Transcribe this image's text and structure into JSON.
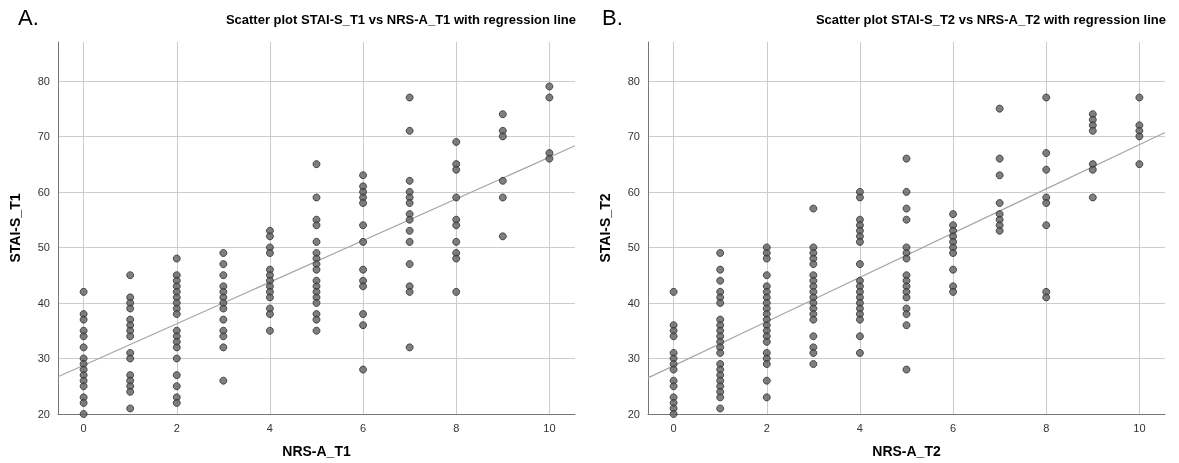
{
  "chart_data": [
    {
      "type": "scatter",
      "title": "Scatter plot STAI-S_T1 vs NRS-A_T1 with regression line",
      "xlabel": "NRS-A_T1",
      "ylabel": "STAI-S_T1",
      "annotations": [
        "A."
      ],
      "xlim": [
        -0.55,
        10.55
      ],
      "ylim": [
        20,
        87
      ],
      "xticks": [
        0,
        2,
        4,
        6,
        8,
        10
      ],
      "yticks": [
        20,
        30,
        40,
        50,
        60,
        70,
        80
      ],
      "grid": true,
      "series": [
        {
          "marker": "circle",
          "color": "#5f5f5f",
          "x": [
            0,
            0,
            0,
            0,
            0,
            0,
            0,
            0,
            0,
            0,
            0,
            0,
            0,
            0,
            0,
            1,
            1,
            1,
            1,
            1,
            1,
            1,
            1,
            1,
            1,
            1,
            1,
            1,
            1,
            1,
            2,
            2,
            2,
            2,
            2,
            2,
            2,
            2,
            2,
            2,
            2,
            2,
            2,
            2,
            2,
            2,
            2,
            2,
            3,
            3,
            3,
            3,
            3,
            3,
            3,
            3,
            3,
            3,
            3,
            3,
            3,
            4,
            4,
            4,
            4,
            4,
            4,
            4,
            4,
            4,
            4,
            4,
            4,
            4,
            5,
            5,
            5,
            5,
            5,
            5,
            5,
            5,
            5,
            5,
            5,
            5,
            5,
            5,
            5,
            5,
            5,
            6,
            6,
            6,
            6,
            6,
            6,
            6,
            6,
            6,
            6,
            6,
            6,
            6,
            7,
            7,
            7,
            7,
            7,
            7,
            7,
            7,
            7,
            7,
            7,
            7,
            7,
            7,
            8,
            8,
            8,
            8,
            8,
            8,
            8,
            8,
            8,
            8,
            9,
            9,
            9,
            9,
            9,
            9,
            10,
            10,
            10,
            10
          ],
          "values": [
            42,
            38,
            37,
            35,
            34,
            32,
            30,
            29,
            28,
            27,
            26,
            25,
            23,
            22,
            20,
            45,
            41,
            40,
            39,
            37,
            36,
            35,
            34,
            31,
            30,
            27,
            26,
            25,
            24,
            21,
            48,
            45,
            44,
            43,
            42,
            41,
            40,
            39,
            38,
            35,
            34,
            33,
            32,
            30,
            27,
            25,
            23,
            22,
            49,
            47,
            45,
            43,
            42,
            41,
            40,
            39,
            37,
            35,
            34,
            32,
            26,
            53,
            52,
            50,
            49,
            46,
            45,
            44,
            43,
            42,
            41,
            39,
            38,
            35,
            65,
            59,
            55,
            54,
            51,
            49,
            48,
            47,
            46,
            44,
            43,
            42,
            41,
            40,
            38,
            37,
            35,
            63,
            61,
            60,
            59,
            58,
            54,
            51,
            46,
            44,
            43,
            38,
            36,
            28,
            77,
            71,
            62,
            60,
            59,
            58,
            56,
            55,
            53,
            51,
            47,
            43,
            42,
            32,
            69,
            65,
            64,
            59,
            55,
            54,
            51,
            49,
            48,
            42,
            74,
            71,
            70,
            62,
            59,
            52,
            79,
            77,
            67,
            66
          ]
        },
        {
          "type": "line",
          "marker": "none",
          "color": "#a6a6a6",
          "line_style": "solid",
          "x": [
            -0.55,
            10.55
          ],
          "values": [
            26.7,
            68.3
          ]
        }
      ]
    },
    {
      "type": "scatter",
      "title": "Scatter plot STAI-S_T2 vs NRS-A_T2 with regression line",
      "xlabel": "NRS-A_T2",
      "ylabel": "STAI-S_T2",
      "annotations": [
        "B."
      ],
      "xlim": [
        -0.55,
        10.55
      ],
      "ylim": [
        20,
        87
      ],
      "xticks": [
        0,
        2,
        4,
        6,
        8,
        10
      ],
      "yticks": [
        20,
        30,
        40,
        50,
        60,
        70,
        80
      ],
      "grid": true,
      "series": [
        {
          "marker": "circle",
          "color": "#5f5f5f",
          "x": [
            0,
            0,
            0,
            0,
            0,
            0,
            0,
            0,
            0,
            0,
            0,
            0,
            0,
            0,
            1,
            1,
            1,
            1,
            1,
            1,
            1,
            1,
            1,
            1,
            1,
            1,
            1,
            1,
            1,
            1,
            1,
            1,
            1,
            1,
            1,
            2,
            2,
            2,
            2,
            2,
            2,
            2,
            2,
            2,
            2,
            2,
            2,
            2,
            2,
            2,
            2,
            2,
            2,
            2,
            2,
            3,
            3,
            3,
            3,
            3,
            3,
            3,
            3,
            3,
            3,
            3,
            3,
            3,
            3,
            3,
            3,
            3,
            3,
            4,
            4,
            4,
            4,
            4,
            4,
            4,
            4,
            4,
            4,
            4,
            4,
            4,
            4,
            4,
            4,
            4,
            4,
            5,
            5,
            5,
            5,
            5,
            5,
            5,
            5,
            5,
            5,
            5,
            5,
            5,
            5,
            5,
            5,
            6,
            6,
            6,
            6,
            6,
            6,
            6,
            6,
            6,
            6,
            7,
            7,
            7,
            7,
            7,
            7,
            7,
            7,
            8,
            8,
            8,
            8,
            8,
            8,
            8,
            8,
            9,
            9,
            9,
            9,
            9,
            9,
            9,
            10,
            10,
            10,
            10,
            10
          ],
          "values": [
            42,
            36,
            35,
            34,
            31,
            30,
            29,
            28,
            26,
            25,
            23,
            22,
            21,
            20,
            49,
            46,
            44,
            42,
            41,
            40,
            37,
            36,
            35,
            34,
            33,
            32,
            31,
            29,
            28,
            27,
            26,
            25,
            24,
            23,
            21,
            50,
            49,
            48,
            45,
            43,
            42,
            41,
            40,
            39,
            38,
            37,
            36,
            35,
            34,
            33,
            31,
            30,
            29,
            26,
            23,
            57,
            50,
            49,
            48,
            47,
            45,
            44,
            43,
            42,
            41,
            40,
            39,
            38,
            37,
            34,
            32,
            31,
            29,
            60,
            59,
            55,
            54,
            53,
            52,
            51,
            47,
            44,
            43,
            42,
            41,
            40,
            39,
            38,
            37,
            34,
            31,
            66,
            60,
            57,
            55,
            50,
            49,
            48,
            45,
            44,
            43,
            42,
            41,
            39,
            38,
            36,
            28,
            56,
            54,
            53,
            52,
            51,
            50,
            49,
            46,
            43,
            42,
            75,
            66,
            63,
            58,
            56,
            55,
            54,
            53,
            77,
            67,
            64,
            59,
            58,
            54,
            42,
            41,
            74,
            73,
            72,
            71,
            65,
            64,
            59,
            77,
            72,
            71,
            70,
            65
          ]
        },
        {
          "type": "line",
          "marker": "none",
          "color": "#a6a6a6",
          "line_style": "solid",
          "x": [
            -0.55,
            10.55
          ],
          "values": [
            26.5,
            70.7
          ]
        }
      ]
    }
  ]
}
